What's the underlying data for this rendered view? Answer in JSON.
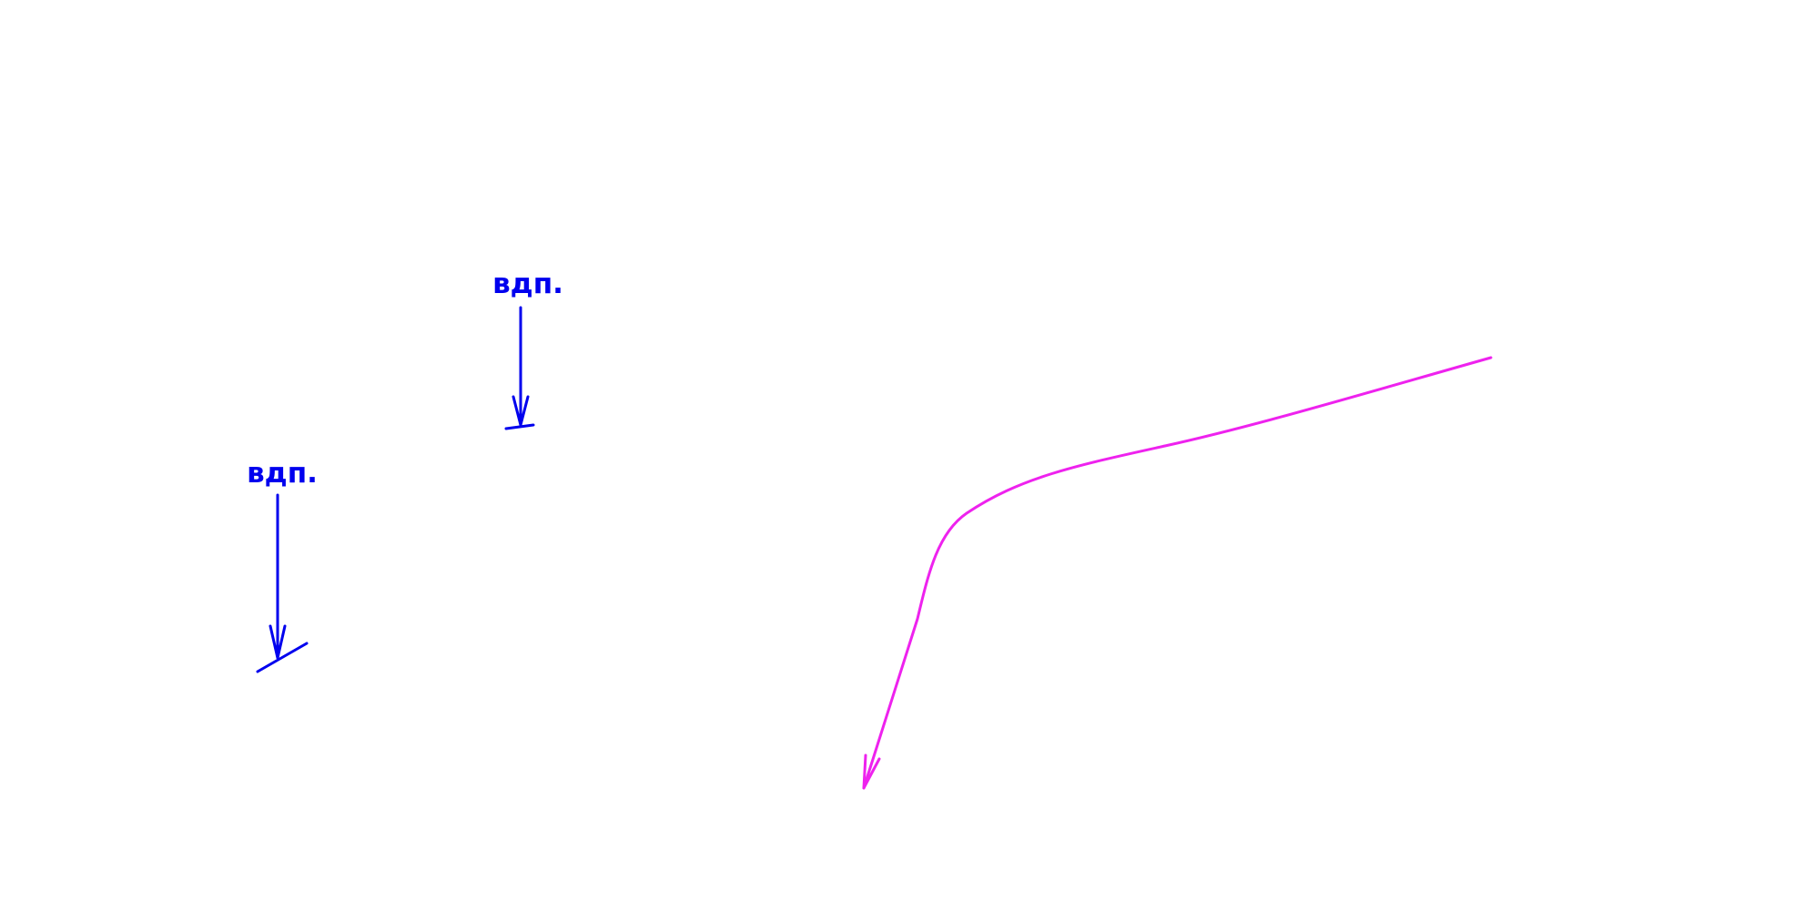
{
  "colors": {
    "background": "#ffffff",
    "marker": "#0000ee",
    "curve": "#ee22ee"
  },
  "markers": [
    {
      "label": "вдп."
    },
    {
      "label": "вдп."
    }
  ],
  "icons": [
    "arrow-down-icon",
    "arrow-down-icon",
    "curved-arrow-icon"
  ]
}
